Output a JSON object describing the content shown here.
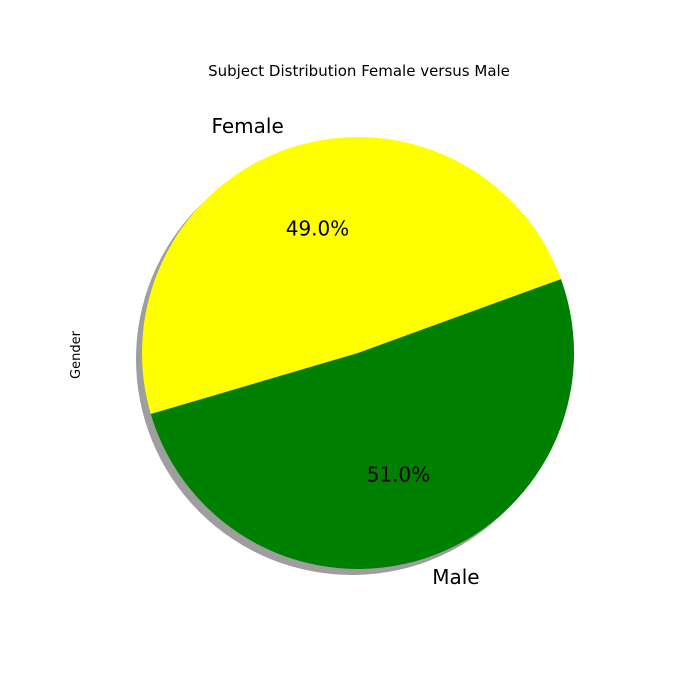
{
  "chart_data": {
    "type": "pie",
    "title": "Subject Distribution Female versus Male",
    "ylabel": "Gender",
    "labels": [
      "Female",
      "Male"
    ],
    "values": [
      49.0,
      51.0
    ],
    "percent_labels": [
      "49.0%",
      "51.0%"
    ],
    "colors": [
      "#ffff00",
      "#008000"
    ],
    "start_angle_deg": 20,
    "shadow": true,
    "legend": "none"
  }
}
